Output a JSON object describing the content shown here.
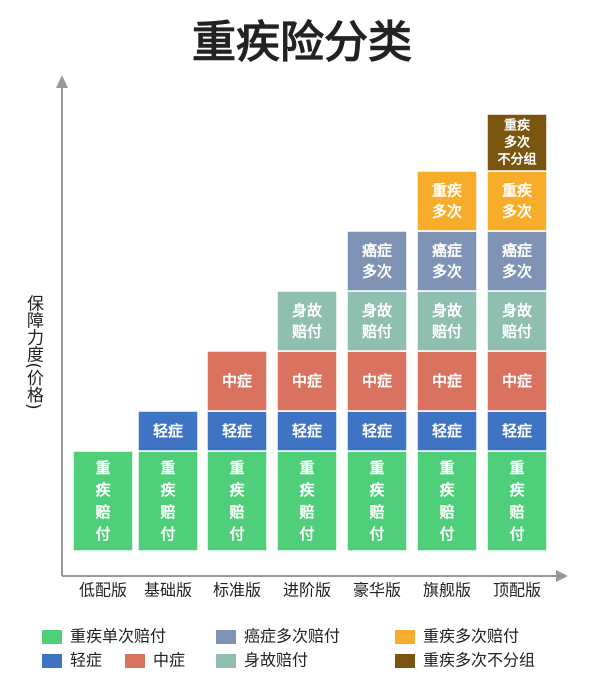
{
  "chart_data": {
    "type": "stacked-bar",
    "title": "重疾险分类",
    "y_label": "保障力度(价格)",
    "categories": [
      "低配版",
      "基础版",
      "标准版",
      "进阶版",
      "豪华版",
      "旗舰版",
      "顶配版"
    ],
    "ylim": [
      0,
      476
    ],
    "series": [
      {
        "name": "重疾单次赔付",
        "label": "重疾赔付",
        "color": "#4fcf7a",
        "values": [
          100,
          100,
          100,
          100,
          100,
          100,
          100
        ]
      },
      {
        "name": "轻症",
        "label": "轻症",
        "color": "#3f74c4",
        "values": [
          null,
          40,
          40,
          40,
          40,
          40,
          40
        ]
      },
      {
        "name": "中症",
        "label": "中症",
        "color": "#d9735f",
        "values": [
          null,
          null,
          60,
          60,
          60,
          60,
          60
        ]
      },
      {
        "name": "身故赔付",
        "label": "身故赔付",
        "color": "#8fbfb0",
        "values": [
          null,
          null,
          null,
          60,
          60,
          60,
          60
        ]
      },
      {
        "name": "癌症多次赔付",
        "label": "癌症多次",
        "color": "#7f93b5",
        "values": [
          null,
          null,
          null,
          null,
          60,
          60,
          60
        ]
      },
      {
        "name": "重疾多次赔付",
        "label": "重疾多次",
        "color": "#f7ad2a",
        "values": [
          null,
          null,
          null,
          null,
          null,
          60,
          60
        ]
      },
      {
        "name": "重疾多次不分组",
        "label": "重疾多次不分组",
        "color": "#7a5510",
        "values": [
          null,
          null,
          null,
          null,
          null,
          null,
          57
        ]
      }
    ]
  }
}
